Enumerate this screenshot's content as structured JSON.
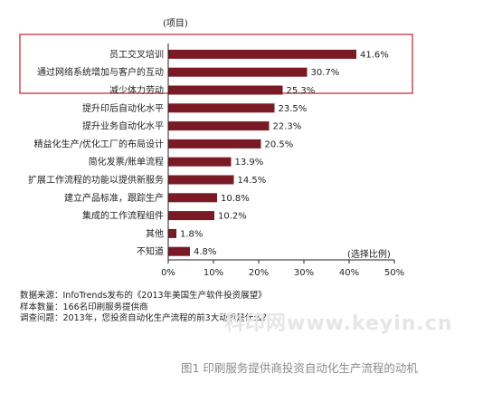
{
  "chart_data": {
    "type": "bar",
    "orientation": "horizontal",
    "category_axis_title": "(项目)",
    "value_axis_title": "(选择比例)",
    "categories": [
      "员工交叉培训",
      "通过网络系统增加与客户的互动",
      "减少体力劳动",
      "提升印后自动化水平",
      "提升业务自动化水平",
      "精益化生产/优化工厂的布局设计",
      "简化发票/账单流程",
      "扩展工作流程的功能以提供新服务",
      "建立产品标准，跟踪生产",
      "集成的工作流程组件",
      "其他",
      "不知道"
    ],
    "values": [
      41.6,
      30.7,
      25.3,
      23.5,
      22.3,
      20.5,
      13.9,
      14.5,
      10.8,
      10.2,
      1.8,
      4.8
    ],
    "value_labels": [
      "41.6%",
      "30.7%",
      "25.3%",
      "23.5%",
      "22.3%",
      "20.5%",
      "13.9%",
      "14.5%",
      "10.8%",
      "10.2%",
      "1.8%",
      "4.8%"
    ],
    "xlim": [
      0,
      50
    ],
    "xticks": [
      "0%",
      "10%",
      "20%",
      "30%",
      "40%",
      "50%"
    ],
    "highlighted_count": 3,
    "grid": false,
    "bar_color": "#7a1a24",
    "highlight_color": "#c0202e"
  },
  "notes": [
    "数据来源：InfoTrends发布的《2013年美国生产软件投资展望》",
    "样本数量：166名印刷服务提供商",
    "调查问题：2013年，您投资自动化生产流程的前3大动机是什么？"
  ],
  "watermark": "科印网www.keyin.cn",
  "caption": "图1 印刷服务提供商投资自动化生产流程的动机"
}
